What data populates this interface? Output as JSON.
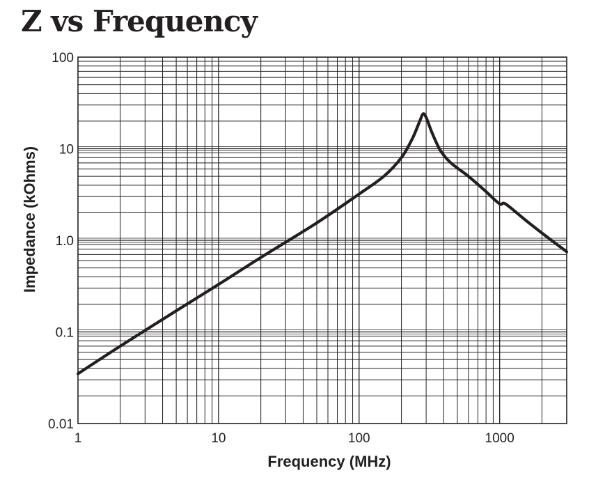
{
  "title": "Z vs Frequency",
  "chart_data": {
    "type": "line",
    "title": "Z vs Frequency",
    "xlabel": "Frequency (MHz)",
    "ylabel": "Impedance (kOhms)",
    "xscale": "log",
    "yscale": "log",
    "xlim": [
      1,
      3000
    ],
    "ylim": [
      0.01,
      100
    ],
    "x_ticks": [
      {
        "value": 1,
        "label": "1"
      },
      {
        "value": 10,
        "label": "10"
      },
      {
        "value": 100,
        "label": "100"
      },
      {
        "value": 1000,
        "label": "1000"
      }
    ],
    "y_ticks": [
      {
        "value": 0.01,
        "label": "0.01"
      },
      {
        "value": 0.1,
        "label": "0.1"
      },
      {
        "value": 1,
        "label": "1.0"
      },
      {
        "value": 10,
        "label": "10"
      },
      {
        "value": 100,
        "label": "100"
      }
    ],
    "grid": true,
    "series": [
      {
        "x": [
          1,
          2,
          5,
          10,
          20,
          50,
          100,
          150,
          200,
          240,
          270,
          285,
          300,
          330,
          380,
          450,
          600,
          800,
          1000,
          1100,
          1500,
          2000,
          3000
        ],
        "y": [
          0.035,
          0.07,
          0.17,
          0.33,
          0.65,
          1.55,
          3.2,
          5.0,
          8.0,
          13.0,
          20.0,
          24.0,
          22.0,
          15.0,
          9.5,
          7.0,
          5.0,
          3.4,
          2.5,
          2.5,
          1.7,
          1.2,
          0.75
        ],
        "color": "#231f20"
      }
    ]
  }
}
